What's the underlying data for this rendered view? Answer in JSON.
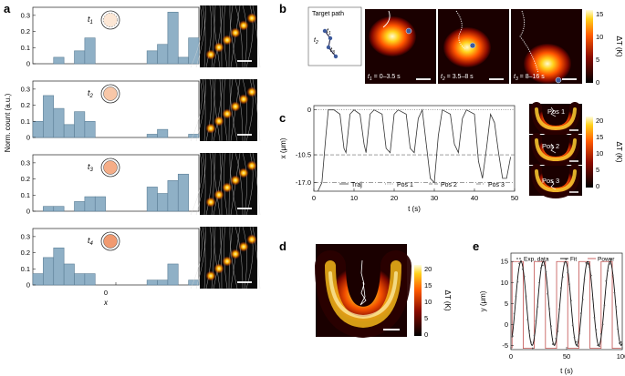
{
  "panels": {
    "a": "a",
    "b": "b",
    "c": "c",
    "d": "d",
    "e": "e"
  },
  "panel_a": {
    "ylabel": "Norm. count (a.u.)",
    "xlabel": "x",
    "xtick": "0",
    "yticks": [
      "0",
      "0.1",
      "0.2",
      "0.3"
    ],
    "ymax": 0.35,
    "subplots": [
      {
        "label": "t",
        "sub": "1",
        "fill": "#fde7d5",
        "values": [
          0,
          0,
          0.04,
          0,
          0.08,
          0.16,
          0,
          0,
          0,
          0,
          0,
          0.08,
          0.12,
          0.32,
          0.04,
          0.16
        ]
      },
      {
        "label": "t",
        "sub": "2",
        "fill": "#f8c7a8",
        "values": [
          0.1,
          0.26,
          0.18,
          0.08,
          0.16,
          0.1,
          0,
          0,
          0,
          0,
          0,
          0.02,
          0.05,
          0,
          0,
          0.02
        ]
      },
      {
        "label": "t",
        "sub": "3",
        "fill": "#f5ad87",
        "values": [
          0,
          0.03,
          0.03,
          0,
          0.06,
          0.09,
          0.09,
          0,
          0,
          0,
          0,
          0.15,
          0.11,
          0.19,
          0.23,
          0
        ]
      },
      {
        "label": "t",
        "sub": "4",
        "fill": "#f19a70",
        "values": [
          0.07,
          0.17,
          0.23,
          0.13,
          0.07,
          0.07,
          0,
          0,
          0,
          0,
          0,
          0.03,
          0.03,
          0.13,
          0,
          0.03
        ]
      }
    ]
  },
  "panel_b": {
    "inset_title": "Target path",
    "path_labels": [
      {
        "t": "t",
        "s": "1"
      },
      {
        "t": "t",
        "s": "2"
      },
      {
        "t": "t",
        "s": "3"
      }
    ],
    "captions": [
      {
        "t": "t",
        "s": "1",
        "rest": " = 0–3.5 s"
      },
      {
        "t": "t",
        "s": "2",
        "rest": " = 3.5–8 s"
      },
      {
        "t": "t",
        "s": "3",
        "rest": " = 8–16 s"
      }
    ],
    "colorbar": {
      "ticks": [
        "15",
        "10",
        "5",
        "0"
      ],
      "label": "ΔT (K)"
    }
  },
  "panel_c": {
    "xlabel": "t (s)",
    "ylabel": "x (μm)",
    "xticks": [
      "0",
      "10",
      "20",
      "30",
      "40",
      "50"
    ],
    "yticks": [
      "0",
      "-10.5",
      "-17.0"
    ],
    "legend": [
      "Traj",
      "Pos 1",
      "Pos 2",
      "Pos 3"
    ],
    "images": [
      "Pos 1",
      "Pos 2",
      "Pos 3"
    ],
    "colorbar": {
      "ticks": [
        "20",
        "15",
        "10",
        "5",
        "0"
      ],
      "label": "ΔT (K)"
    }
  },
  "panel_d": {
    "colorbar": {
      "ticks": [
        "20",
        "15",
        "10",
        "5",
        "0"
      ],
      "label": "ΔT (K)"
    }
  },
  "panel_e": {
    "xlabel": "t (s)",
    "ylabel": "y (μm)",
    "xticks": [
      "0",
      "50",
      "100"
    ],
    "yticks": [
      "15",
      "10",
      "5",
      "0",
      "-5"
    ],
    "legend": [
      "Exp. data",
      "Fit",
      "Power"
    ]
  },
  "colors": {
    "bar": "#8fb0c6",
    "bar_edge": "#5c7f96",
    "power": "#c2504f"
  }
}
